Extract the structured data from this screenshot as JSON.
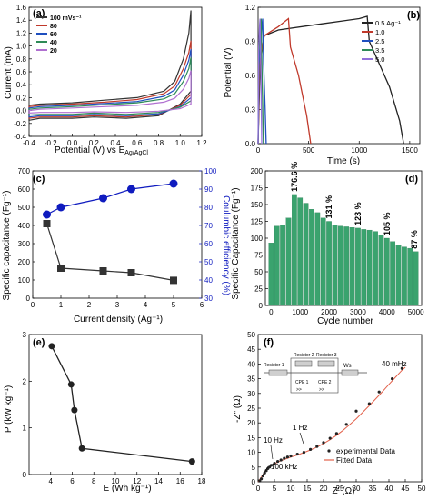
{
  "figure": {
    "panels": [
      {
        "label": "(a)",
        "xlabel": "Potential (V) vs E",
        "xlabel_sub": "Ag/AgCl",
        "ylabel": "Current (mA)"
      },
      {
        "label": "(b)",
        "xlabel": "Time (s)",
        "ylabel": "Potential (V)"
      },
      {
        "label": "(c)",
        "xlabel": "Current density (Ag⁻¹)",
        "ylabel": "Specific capacitance (Fg⁻¹)",
        "ylabel2": "Coulumbic efficiency (%)"
      },
      {
        "label": "(d)",
        "xlabel": "Cycle number",
        "ylabel": "Specific Capacitance (Fg⁻¹)"
      },
      {
        "label": "(e)",
        "xlabel": "E (Wh kg⁻¹)",
        "ylabel": "P (kW kg⁻¹)"
      },
      {
        "label": "(f)",
        "xlabel": "Z' (Ω)",
        "ylabel": "-Z\" (Ω)"
      }
    ]
  },
  "chart_data": [
    {
      "panel": "a",
      "type": "line",
      "xlim": [
        -0.4,
        1.2
      ],
      "ylim": [
        -0.4,
        1.6
      ],
      "xticks": [
        "-0.4",
        "-0.2",
        "0.0",
        "0.2",
        "0.4",
        "0.6",
        "0.8",
        "1.0",
        "1.2"
      ],
      "yticks": [
        "-0.4",
        "-0.2",
        "0.0",
        "0.2",
        "0.4",
        "0.6",
        "0.8",
        "1.0",
        "1.2",
        "1.4",
        "1.6"
      ],
      "series": [
        {
          "name": "100 mVs⁻¹",
          "color": "#333333",
          "upper": [
            [
              -0.4,
              0.08
            ],
            [
              -0.3,
              0.1
            ],
            [
              0,
              0.12
            ],
            [
              0.3,
              0.16
            ],
            [
              0.6,
              0.2
            ],
            [
              0.85,
              0.3
            ],
            [
              0.95,
              0.45
            ],
            [
              1.03,
              0.8
            ],
            [
              1.08,
              1.2
            ],
            [
              1.1,
              1.55
            ]
          ],
          "lower": [
            [
              -0.4,
              -0.15
            ],
            [
              -0.3,
              -0.12
            ],
            [
              0,
              -0.12
            ],
            [
              0.2,
              -0.1
            ],
            [
              0.5,
              -0.12
            ],
            [
              0.8,
              -0.08
            ],
            [
              1.0,
              0.1
            ],
            [
              1.1,
              0.3
            ]
          ]
        },
        {
          "name": "80",
          "color": "#c0392b",
          "upper": [
            [
              -0.4,
              0.06
            ],
            [
              -0.3,
              0.08
            ],
            [
              0,
              0.1
            ],
            [
              0.3,
              0.13
            ],
            [
              0.6,
              0.17
            ],
            [
              0.85,
              0.26
            ],
            [
              0.95,
              0.38
            ],
            [
              1.03,
              0.65
            ],
            [
              1.08,
              0.9
            ],
            [
              1.1,
              1.08
            ]
          ],
          "lower": [
            [
              -0.4,
              -0.12
            ],
            [
              -0.3,
              -0.1
            ],
            [
              0,
              -0.1
            ],
            [
              0.2,
              -0.08
            ],
            [
              0.5,
              -0.1
            ],
            [
              0.8,
              -0.06
            ],
            [
              1.0,
              0.08
            ],
            [
              1.1,
              0.25
            ]
          ]
        },
        {
          "name": "60",
          "color": "#1f4fbf",
          "upper": [
            [
              -0.4,
              0.04
            ],
            [
              -0.3,
              0.06
            ],
            [
              0,
              0.08
            ],
            [
              0.3,
              0.11
            ],
            [
              0.6,
              0.14
            ],
            [
              0.85,
              0.22
            ],
            [
              0.95,
              0.32
            ],
            [
              1.03,
              0.55
            ],
            [
              1.08,
              0.78
            ],
            [
              1.1,
              0.95
            ]
          ],
          "lower": [
            [
              -0.4,
              -0.1
            ],
            [
              -0.3,
              -0.08
            ],
            [
              0,
              -0.08
            ],
            [
              0.2,
              -0.06
            ],
            [
              0.5,
              -0.08
            ],
            [
              0.8,
              -0.05
            ],
            [
              1.0,
              0.06
            ],
            [
              1.1,
              0.2
            ]
          ]
        },
        {
          "name": "40",
          "color": "#2e8b57",
          "upper": [
            [
              -0.4,
              0.02
            ],
            [
              -0.3,
              0.04
            ],
            [
              0,
              0.06
            ],
            [
              0.3,
              0.09
            ],
            [
              0.6,
              0.12
            ],
            [
              0.85,
              0.18
            ],
            [
              0.95,
              0.26
            ],
            [
              1.03,
              0.45
            ],
            [
              1.08,
              0.65
            ],
            [
              1.1,
              0.82
            ]
          ],
          "lower": [
            [
              -0.4,
              -0.07
            ],
            [
              -0.3,
              -0.06
            ],
            [
              0,
              -0.06
            ],
            [
              0.2,
              -0.04
            ],
            [
              0.5,
              -0.06
            ],
            [
              0.8,
              -0.03
            ],
            [
              1.0,
              0.05
            ],
            [
              1.1,
              0.15
            ]
          ]
        },
        {
          "name": "20",
          "color": "#b070d0",
          "upper": [
            [
              -0.4,
              0.0
            ],
            [
              -0.3,
              0.02
            ],
            [
              0,
              0.04
            ],
            [
              0.3,
              0.06
            ],
            [
              0.6,
              0.08
            ],
            [
              0.85,
              0.13
            ],
            [
              0.95,
              0.19
            ],
            [
              1.03,
              0.33
            ],
            [
              1.08,
              0.5
            ],
            [
              1.1,
              0.62
            ]
          ],
          "lower": [
            [
              -0.4,
              -0.04
            ],
            [
              -0.3,
              -0.03
            ],
            [
              0,
              -0.03
            ],
            [
              0.2,
              -0.02
            ],
            [
              0.5,
              -0.03
            ],
            [
              0.8,
              -0.01
            ],
            [
              1.0,
              0.03
            ],
            [
              1.1,
              0.1
            ]
          ]
        }
      ]
    },
    {
      "panel": "b",
      "type": "line",
      "xlim": [
        0,
        1600
      ],
      "ylim": [
        0.0,
        1.2
      ],
      "xticks": [
        "0",
        "500",
        "1000",
        "1500"
      ],
      "yticks": [
        "0.0",
        "0.3",
        "0.6",
        "0.9",
        "1.2"
      ],
      "series": [
        {
          "name": "0.5 Ag⁻¹",
          "color": "#222222",
          "points": [
            [
              0,
              0
            ],
            [
              20,
              0.7
            ],
            [
              60,
              0.95
            ],
            [
              200,
              1.0
            ],
            [
              600,
              1.05
            ],
            [
              1000,
              1.1
            ],
            [
              1080,
              1.12
            ],
            [
              1100,
              0.9
            ],
            [
              1200,
              0.7
            ],
            [
              1300,
              0.5
            ],
            [
              1400,
              0.2
            ],
            [
              1440,
              0
            ]
          ]
        },
        {
          "name": "1.0",
          "color": "#c0392b",
          "points": [
            [
              0,
              0
            ],
            [
              15,
              0.7
            ],
            [
              60,
              0.95
            ],
            [
              200,
              1.03
            ],
            [
              300,
              1.1
            ],
            [
              320,
              0.85
            ],
            [
              400,
              0.6
            ],
            [
              480,
              0.25
            ],
            [
              520,
              0
            ]
          ]
        },
        {
          "name": "2.5",
          "color": "#1f4fbf",
          "points": [
            [
              0,
              0
            ],
            [
              10,
              0.7
            ],
            [
              30,
              0.95
            ],
            [
              45,
              1.1
            ],
            [
              55,
              0.7
            ],
            [
              70,
              0.3
            ],
            [
              80,
              0
            ]
          ]
        },
        {
          "name": "3.5",
          "color": "#2e8b57",
          "points": [
            [
              0,
              0
            ],
            [
              8,
              0.8
            ],
            [
              20,
              1.0
            ],
            [
              30,
              1.1
            ],
            [
              40,
              0.6
            ],
            [
              52,
              0
            ]
          ]
        },
        {
          "name": "5.0",
          "color": "#9370db",
          "points": [
            [
              0,
              0
            ],
            [
              6,
              0.85
            ],
            [
              15,
              1.05
            ],
            [
              20,
              1.1
            ],
            [
              30,
              0.5
            ],
            [
              36,
              0
            ]
          ]
        }
      ]
    },
    {
      "panel": "c",
      "type": "line",
      "xlim": [
        0,
        6
      ],
      "ylim": [
        0,
        700
      ],
      "ylim2": [
        30,
        100
      ],
      "xticks": [
        "0",
        "1",
        "2",
        "3",
        "4",
        "5",
        "6"
      ],
      "yticks": [
        "0",
        "100",
        "200",
        "300",
        "400",
        "500",
        "600",
        "700"
      ],
      "yticks2": [
        "30",
        "40",
        "50",
        "60",
        "70",
        "80",
        "90",
        "100"
      ],
      "capacitance": {
        "x": [
          0.5,
          1,
          2.5,
          3.5,
          5
        ],
        "y": [
          410,
          165,
          150,
          140,
          98
        ],
        "color": "#333333"
      },
      "efficiency": {
        "x": [
          0.5,
          1,
          2.5,
          3.5,
          5
        ],
        "y": [
          76,
          80,
          85,
          90,
          93
        ],
        "color": "#0f1bbf"
      }
    },
    {
      "panel": "d",
      "type": "bar",
      "xlim": [
        0,
        5000
      ],
      "ylim": [
        0,
        200
      ],
      "xticks": [
        "0",
        "1000",
        "2000",
        "3000",
        "4000",
        "5000"
      ],
      "yticks": [
        "0",
        "25",
        "50",
        "75",
        "100",
        "125",
        "150",
        "175",
        "200"
      ],
      "bar_color": "#3aa36e",
      "x": [
        0,
        200,
        400,
        600,
        800,
        1000,
        1200,
        1400,
        1600,
        1800,
        2000,
        2200,
        2400,
        2600,
        2800,
        3000,
        3200,
        3400,
        3600,
        3800,
        4000,
        4200,
        4400,
        4600,
        4800,
        5000
      ],
      "values": [
        93,
        118,
        120,
        130,
        165,
        160,
        152,
        143,
        138,
        130,
        125,
        120,
        118,
        117,
        116,
        115,
        113,
        112,
        110,
        105,
        100,
        95,
        90,
        87,
        85,
        80
      ],
      "annotations": [
        {
          "x": 800,
          "text": "176.6 %"
        },
        {
          "x": 2000,
          "text": "131 %"
        },
        {
          "x": 3000,
          "text": "123 %"
        },
        {
          "x": 4000,
          "text": "105 %"
        },
        {
          "x": 4950,
          "text": "87 %"
        }
      ]
    },
    {
      "panel": "e",
      "type": "line",
      "xlim": [
        2,
        18
      ],
      "ylim": [
        0,
        3
      ],
      "xticks": [
        "4",
        "6",
        "8",
        "10",
        "12",
        "14",
        "16",
        "18"
      ],
      "yticks": [
        "0",
        "1",
        "2",
        "3"
      ],
      "x": [
        4.1,
        5.9,
        6.2,
        6.9,
        17.1
      ],
      "y": [
        2.75,
        1.93,
        1.38,
        0.56,
        0.28
      ],
      "color": "#222222"
    },
    {
      "panel": "f",
      "type": "scatter",
      "xlim": [
        0,
        50
      ],
      "ylim": [
        0,
        50
      ],
      "xticks": [
        "0",
        "5",
        "10",
        "15",
        "20",
        "25",
        "30",
        "35",
        "40",
        "45",
        "50"
      ],
      "yticks": [
        "0",
        "5",
        "10",
        "15",
        "20",
        "25",
        "30",
        "35",
        "40",
        "45",
        "50"
      ],
      "experimental": {
        "name": "experimental Data",
        "color": "#222222",
        "x": [
          0.5,
          1,
          1.5,
          2,
          2.5,
          3,
          3.5,
          4,
          5,
          6,
          7,
          8,
          9,
          10,
          12,
          14,
          16,
          18,
          20,
          22,
          24,
          27,
          30,
          34,
          37,
          41,
          44
        ],
        "y": [
          0.3,
          1,
          2,
          3,
          3.8,
          4.5,
          5,
          5.6,
          6.3,
          6.9,
          7.4,
          8,
          8.4,
          8.8,
          9.4,
          10,
          11,
          12,
          13.3,
          14.8,
          16.4,
          19.5,
          24,
          26.5,
          30.5,
          35,
          38.5
        ]
      },
      "fitted": {
        "name": "Fitted Data",
        "color": "#e2604a",
        "x": [
          0,
          1,
          2,
          3,
          4,
          6,
          8,
          10,
          12,
          14,
          16,
          18,
          20,
          22,
          24,
          26,
          28,
          30,
          32,
          34,
          36,
          38,
          40,
          42,
          44,
          45
        ],
        "y": [
          0,
          1.6,
          3.3,
          4.6,
          5.5,
          6.7,
          7.6,
          8.4,
          9.1,
          9.9,
          10.8,
          11.8,
          13.0,
          14.3,
          15.8,
          17.5,
          19.4,
          21.4,
          23.6,
          25.9,
          28.2,
          30.6,
          33.1,
          35.5,
          37.9,
          38.9
        ]
      },
      "annotations": {
        "low": "100 kHz",
        "mid1": "10 Hz",
        "mid2": "1 Hz",
        "high": "40 mHz"
      },
      "circuit": {
        "r1": "Resistor 1",
        "r2": "Resistor 2",
        "r3": "Resistor 3",
        "ws": "Ws",
        "cpe1": "CPE 1",
        "cpe2": "CPE 2"
      }
    }
  ]
}
